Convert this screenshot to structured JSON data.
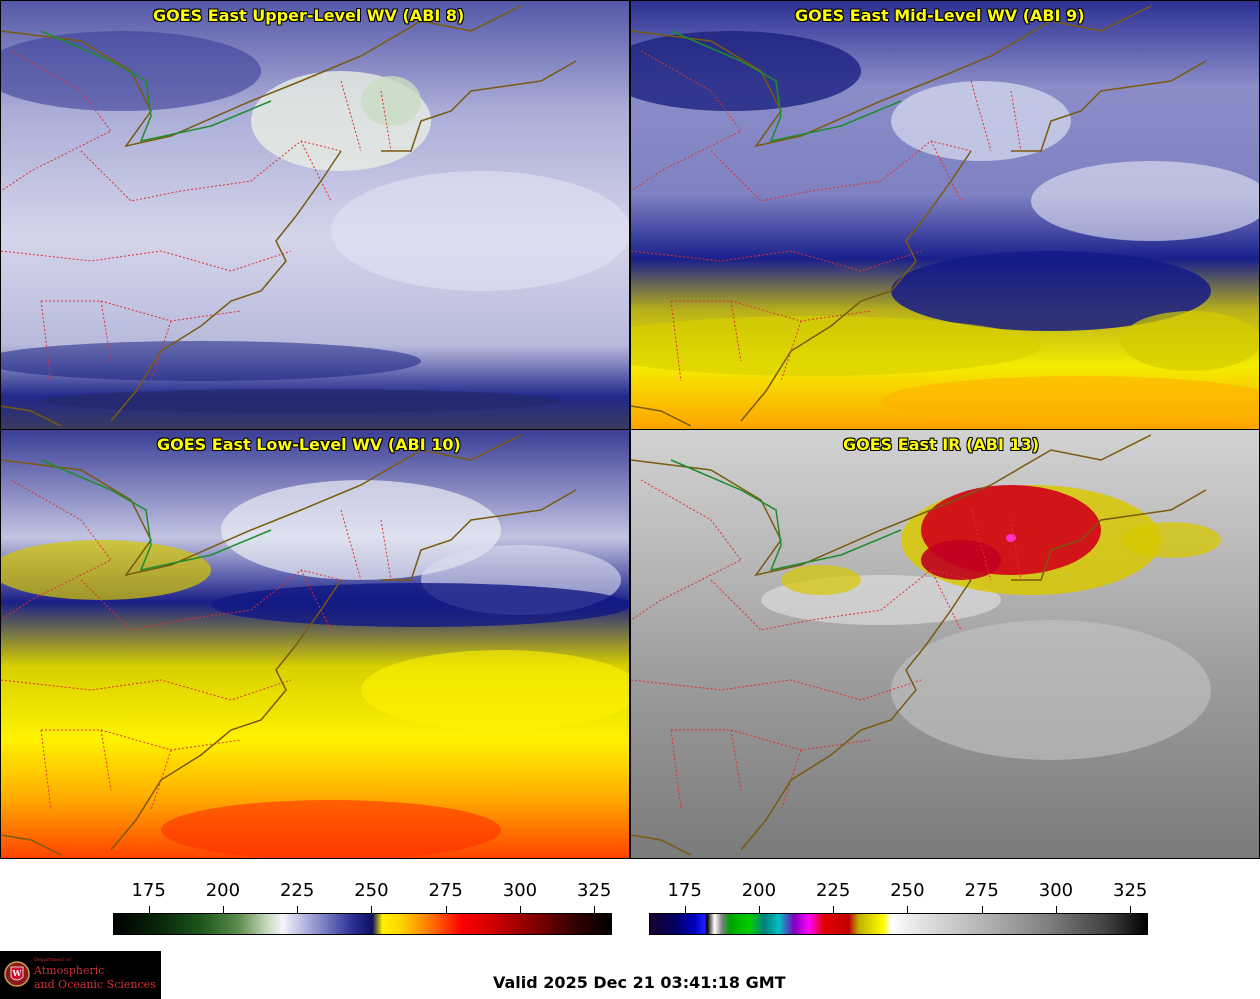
{
  "panels": [
    {
      "id": "p1",
      "title": "GOES East Upper-Level WV (ABI 8)",
      "palette": "wv-upper"
    },
    {
      "id": "p2",
      "title": "GOES East Mid-Level WV (ABI 9)",
      "palette": "wv-mid"
    },
    {
      "id": "p3",
      "title": "GOES East Low-Level WV (ABI 10)",
      "palette": "wv-low"
    },
    {
      "id": "p4",
      "title": "GOES East IR (ABI 13)",
      "palette": "ir"
    }
  ],
  "colorbars": {
    "wv": {
      "ticks": [
        "175",
        "200",
        "225",
        "250",
        "275",
        "300",
        "325"
      ],
      "range": [
        163,
        331
      ],
      "tick_values": [
        175,
        200,
        225,
        250,
        275,
        300,
        325
      ]
    },
    "ir": {
      "ticks": [
        "175",
        "200",
        "225",
        "250",
        "275",
        "300",
        "325"
      ],
      "range": [
        163,
        331
      ],
      "tick_values": [
        175,
        200,
        225,
        250,
        275,
        300,
        325
      ]
    }
  },
  "colors": {
    "state_borders": "#e03030",
    "coastline": "#7a5a10",
    "intl_border": "#1e8c2e",
    "title_text": "#ffff00"
  },
  "logo": {
    "small": "Department of",
    "line1": "Atmospheric",
    "line2": "and Oceanic Sciences"
  },
  "valid_time": "Valid 2025 Dec 21 03:41:18 GMT"
}
